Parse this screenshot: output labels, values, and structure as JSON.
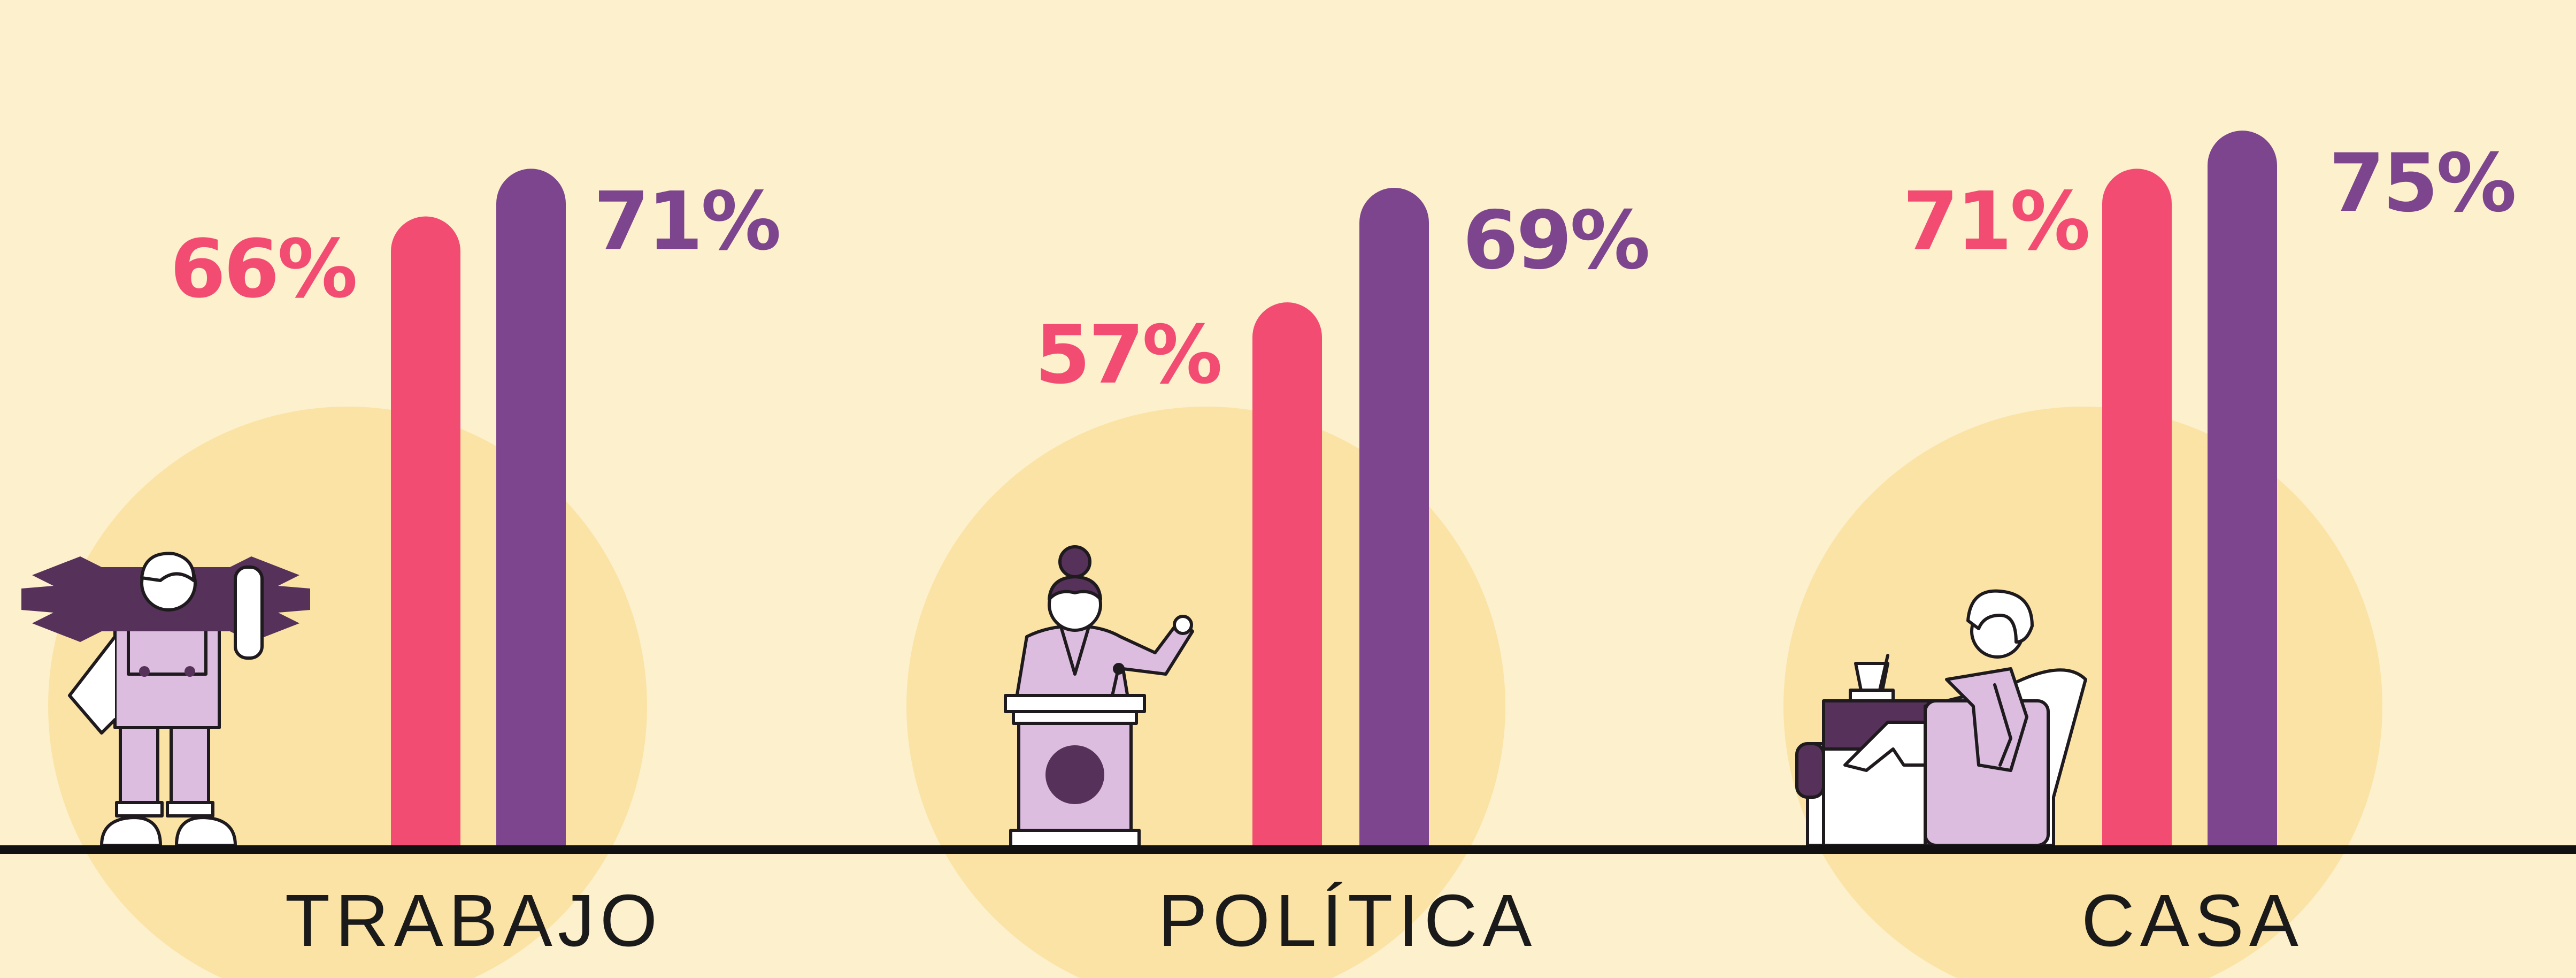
{
  "colors": {
    "background": "#fcf0cd",
    "circle": "#fbe3a5",
    "series_a": "#f24c72",
    "series_b": "#7c458d",
    "baseline": "#111111",
    "illustration_fill": "#dcbddf",
    "illustration_dark": "#563159",
    "illustration_outline": "#1e1a1e"
  },
  "chart_data": {
    "type": "bar",
    "categories": [
      "TRABAJO",
      "POLÍTICA",
      "CASA"
    ],
    "series": [
      {
        "values": [
          66,
          57,
          71
        ],
        "labels": [
          "66%",
          "57%",
          "71%"
        ],
        "color": "#f24c72"
      },
      {
        "values": [
          71,
          69,
          75
        ],
        "labels": [
          "71%",
          "69%",
          "75%"
        ],
        "color": "#7c458d"
      }
    ],
    "ylim": [
      0,
      100
    ],
    "grid": false,
    "legend": "none",
    "title": "",
    "xlabel": "",
    "ylabel": ""
  },
  "illustrations": [
    "mechanic-with-wrench-icon",
    "politician-at-podium-icon",
    "person-relaxing-on-sofa-icon"
  ]
}
